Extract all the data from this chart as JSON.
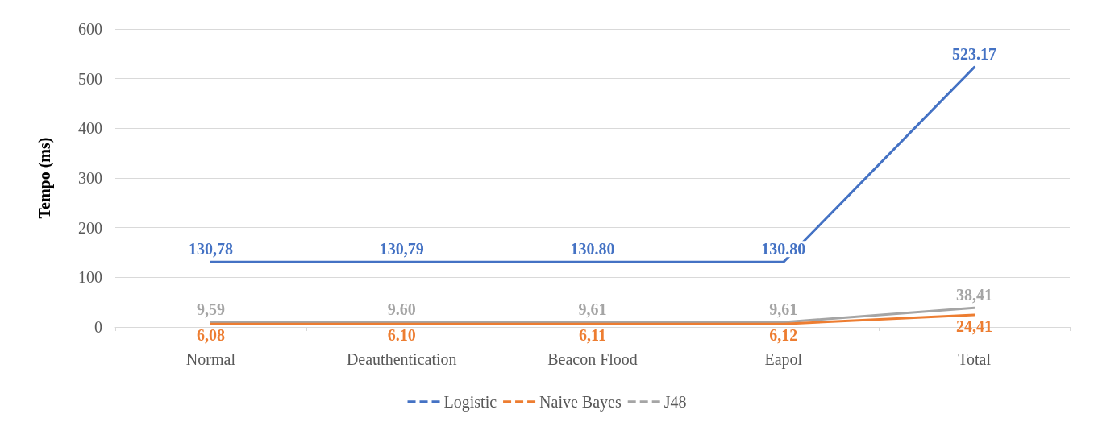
{
  "chart_data": {
    "type": "line",
    "ylabel": "Tempo (ms)",
    "categories": [
      "Normal",
      "Deauthentication",
      "Beacon Flood",
      "Eapol",
      "Total"
    ],
    "series": [
      {
        "name": "Logistic",
        "color": "#4472c4",
        "values": [
          130.78,
          130.79,
          130.8,
          130.8,
          523.17
        ],
        "value_labels": [
          "130,78",
          "130,79",
          "130.80",
          "130.80",
          "523.17"
        ]
      },
      {
        "name": "Naive Bayes",
        "color": "#ed7d31",
        "values": [
          6.08,
          6.1,
          6.11,
          6.12,
          24.41
        ],
        "value_labels": [
          "6,08",
          "6.10",
          "6,11",
          "6,12",
          "24,41"
        ]
      },
      {
        "name": "J48",
        "color": "#a5a5a5",
        "values": [
          9.59,
          9.6,
          9.61,
          9.61,
          38.41
        ],
        "value_labels": [
          "9,59",
          "9.60",
          "9,61",
          "9,61",
          "38,41"
        ]
      }
    ],
    "ylim": [
      0,
      600
    ],
    "yticks": [
      0,
      100,
      200,
      300,
      400,
      500,
      600
    ],
    "grid": "y",
    "legend": "bottom",
    "marker": "none",
    "line_style": "solid"
  }
}
